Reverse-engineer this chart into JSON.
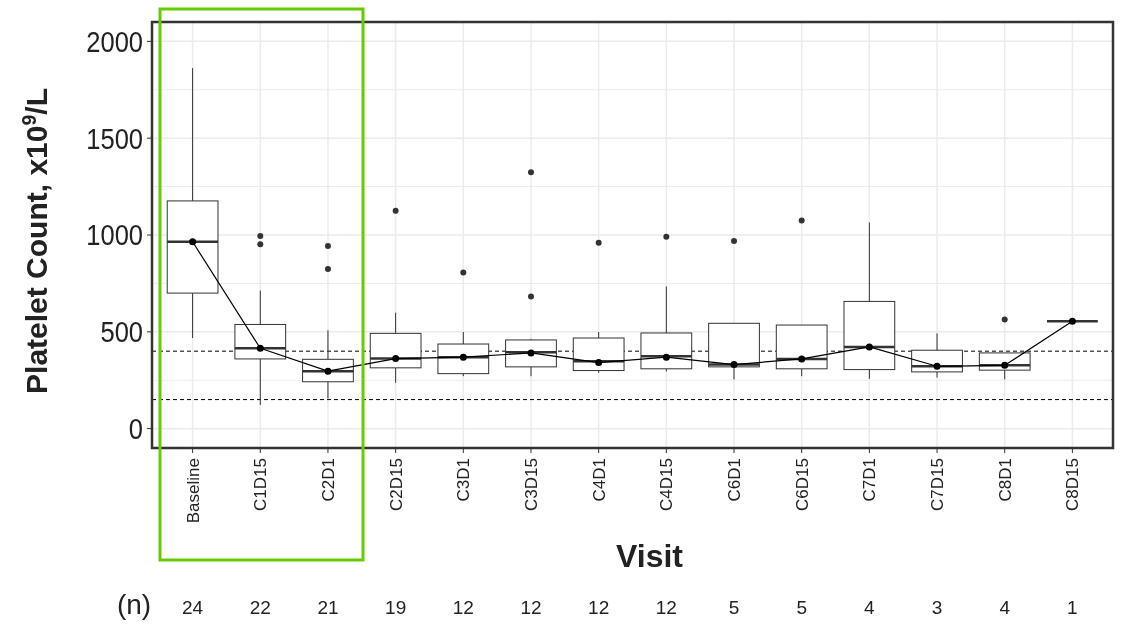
{
  "chart_data": {
    "type": "box",
    "xlabel": "Visit",
    "ylabel": "Platelet Count, x10$^{9}$/L",
    "categories": [
      "Baseline",
      "C1D15",
      "C2D1",
      "C2D15",
      "C3D1",
      "C3D15",
      "C4D1",
      "C4D15",
      "C6D1",
      "C6D15",
      "C7D1",
      "C7D15",
      "C8D1",
      "C8D15"
    ],
    "ylim": [
      -100,
      2100
    ],
    "yticks": [
      0,
      {
        "value": 250,
        "label": null
      },
      500,
      {
        "value": 750,
        "label": null
      },
      1000,
      {
        "value": 1250,
        "label": null
      },
      1500,
      {
        "value": 1750,
        "label": null
      },
      2000
    ],
    "grid": true,
    "series": [
      {
        "color": "#333333",
        "boxes": [
          {
            "low": 468,
            "q1": 700,
            "median": 965,
            "q3": 1176,
            "high": 1862
          },
          {
            "low": 122,
            "q1": 360,
            "median": 415,
            "q3": 538,
            "high": 713,
            "outliers": [
              995,
              952
            ]
          },
          {
            "low": 156,
            "q1": 242,
            "median": 297,
            "q3": 358,
            "high": 508,
            "outliers": [
              943,
              825
            ]
          },
          {
            "low": 237,
            "q1": 314,
            "median": 362,
            "q3": 492,
            "high": 599,
            "outliers": [
              1125
            ]
          },
          {
            "low": 271,
            "q1": 284,
            "median": 369,
            "q3": 437,
            "high": 499,
            "outliers": [
              806
            ]
          },
          {
            "low": 271,
            "q1": 319,
            "median": 394,
            "q3": 458,
            "high": 463,
            "outliers": [
              1324,
              682
            ]
          },
          {
            "low": 288,
            "q1": 300,
            "median": 348,
            "q3": 468,
            "high": 499,
            "outliers": [
              960
            ]
          },
          {
            "low": 295,
            "q1": 309,
            "median": 374,
            "q3": 494,
            "high": 734,
            "outliers": [
              991
            ]
          },
          {
            "low": 254,
            "q1": 319,
            "median": 331,
            "q3": 544,
            "high": 544,
            "outliers": [
              969
            ]
          },
          {
            "low": 271,
            "q1": 309,
            "median": 360,
            "q3": 535,
            "high": 535,
            "outliers": [
              1075
            ]
          },
          {
            "low": 257,
            "q1": 305,
            "median": 422,
            "q3": 657,
            "high": 1065
          },
          {
            "low": 264,
            "q1": 293,
            "median": 322,
            "q3": 405,
            "high": 492
          },
          {
            "low": 254,
            "q1": 302,
            "median": 327,
            "q3": 391,
            "high": 391,
            "outliers": [
              564
            ]
          },
          {
            "low": 554,
            "q1": 554,
            "median": 554,
            "q3": 554,
            "high": 554
          }
        ]
      },
      {
        "type": "line",
        "color": "#000000",
        "marker": "circle",
        "line_style": "solid",
        "values": [
          965,
          415,
          297,
          362,
          369,
          391,
          341,
          369,
          331,
          360,
          422,
          322,
          327,
          554
        ]
      }
    ],
    "ref_lines": [
      {
        "axis": "y",
        "value": 400,
        "line_style": "dashed",
        "color": "#000000"
      },
      {
        "axis": "y",
        "value": 150,
        "line_style": "dashed",
        "color": "#000000"
      }
    ],
    "annotations": [
      "(n)",
      "24",
      "22",
      "21",
      "19",
      "12",
      "12",
      "12",
      "12",
      "5",
      "5",
      "4",
      "3",
      "4",
      "1"
    ]
  }
}
